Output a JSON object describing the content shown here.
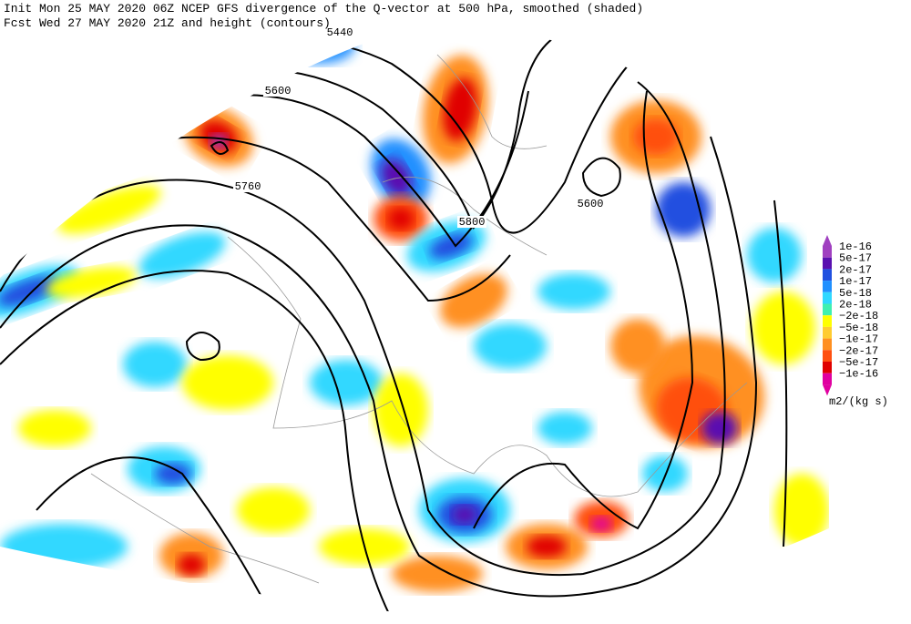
{
  "header": {
    "line1": "Init  Mon 25 MAY 2020 06Z  NCEP GFS divergence of the Q-vector at 500 hPa, smoothed (shaded)",
    "line2": "Fcst Wed 27 MAY 2020 21Z  and height (contours)"
  },
  "contour_labels": [
    "5440",
    "5600",
    "5760",
    "5800",
    "5600"
  ],
  "legend": {
    "labels": [
      "1e-16",
      "5e-17",
      "2e-17",
      "1e-17",
      "5e-18",
      "2e-18",
      "−2e-18",
      "−5e-18",
      "−1e-17",
      "−2e-17",
      "−5e-17",
      "−1e-16"
    ],
    "colors": [
      "#a040c0",
      "#5a10b0",
      "#2050e0",
      "#2090ff",
      "#30d8ff",
      "#40f0b0",
      "#ffff00",
      "#ffcc30",
      "#ff9020",
      "#ff5010",
      "#e00000",
      "#e000a0"
    ],
    "unit": "m2/(kg s)"
  }
}
